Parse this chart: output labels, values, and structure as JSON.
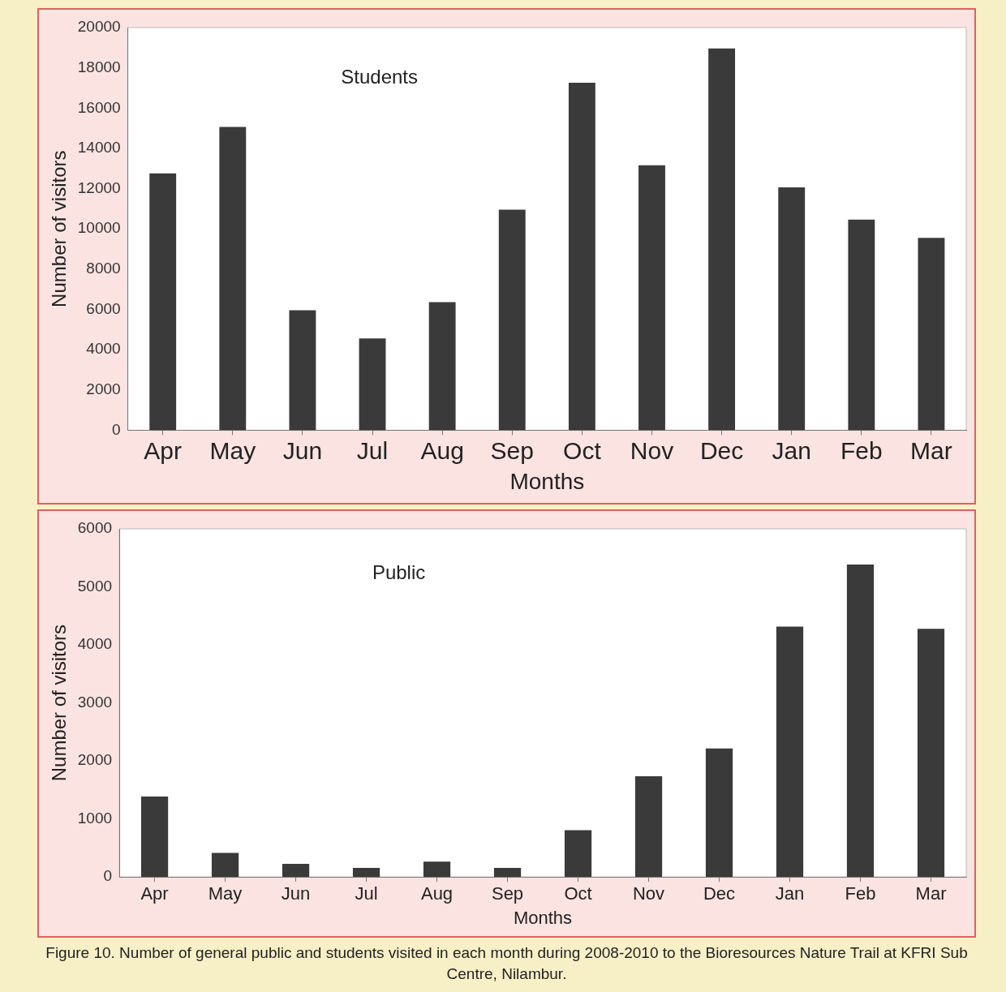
{
  "chart_data": [
    {
      "type": "bar",
      "title": "Students",
      "xlabel": "Months",
      "ylabel": "Number of visitors",
      "categories": [
        "Apr",
        "May",
        "Jun",
        "Jul",
        "Aug",
        "Sep",
        "Oct",
        "Nov",
        "Dec",
        "Jan",
        "Feb",
        "Mar"
      ],
      "values": [
        12800,
        15100,
        6000,
        4600,
        6400,
        11000,
        17300,
        13200,
        19000,
        12100,
        10500,
        9600
      ],
      "color": "#3a3a3a",
      "ylim": [
        0,
        20000
      ],
      "yticks": [
        0,
        2000,
        4000,
        6000,
        8000,
        10000,
        12000,
        14000,
        16000,
        18000,
        20000
      ],
      "grid": false
    },
    {
      "type": "bar",
      "title": "Public",
      "xlabel": "Months",
      "ylabel": "Number of visitors",
      "categories": [
        "Apr",
        "May",
        "Jun",
        "Jul",
        "Aug",
        "Sep",
        "Oct",
        "Nov",
        "Dec",
        "Jan",
        "Feb",
        "Mar"
      ],
      "values": [
        1400,
        430,
        240,
        170,
        280,
        170,
        820,
        1750,
        2230,
        4330,
        5400,
        4290
      ],
      "color": "#3a3a3a",
      "ylim": [
        0,
        6000
      ],
      "yticks": [
        0,
        1000,
        2000,
        3000,
        4000,
        5000,
        6000
      ],
      "grid": false,
      "annotations": [
        "Figure 10. Number of general public and students visited in each month during 2008-2010 to the Bioresources Nature Trail at KFRI Sub Centre, Nilambur."
      ]
    }
  ]
}
